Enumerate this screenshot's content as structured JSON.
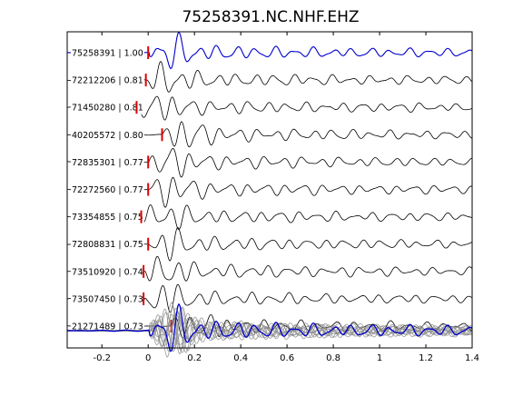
{
  "chart_data": {
    "type": "line",
    "title": "75258391.NC.NHF.EHZ",
    "xlabel": "",
    "ylabel": "",
    "xlim": [
      -0.35,
      1.4
    ],
    "x_ticks": [
      {
        "value": -0.2,
        "label": "-0.2"
      },
      {
        "value": 0,
        "label": "0"
      },
      {
        "value": 0.2,
        "label": "0.2"
      },
      {
        "value": 0.4,
        "label": "0.4"
      },
      {
        "value": 0.6,
        "label": "0.6"
      },
      {
        "value": 0.8,
        "label": "0.8"
      },
      {
        "value": 1,
        "label": "1"
      },
      {
        "value": 1.2,
        "label": "1.2"
      },
      {
        "value": 1.4,
        "label": "1.4"
      }
    ],
    "grid": false,
    "colors": {
      "reference": "#0000cc",
      "trace": "#000000",
      "pick": "#dd0000",
      "stack": "#888888"
    },
    "traces": [
      {
        "label": "75258391 | 1.00",
        "pick_time": 0.0,
        "reference": true
      },
      {
        "label": "72212206 | 0.81",
        "pick_time": -0.01
      },
      {
        "label": "71450280 | 0.81",
        "pick_time": -0.05
      },
      {
        "label": "40205572 | 0.80",
        "pick_time": 0.06
      },
      {
        "label": "72835301 | 0.77",
        "pick_time": 0.0
      },
      {
        "label": "72272560 | 0.77",
        "pick_time": 0.0
      },
      {
        "label": "73354855 | 0.75",
        "pick_time": -0.03
      },
      {
        "label": "72808831 | 0.75",
        "pick_time": 0.0
      },
      {
        "label": "73510920 | 0.74",
        "pick_time": -0.02
      },
      {
        "label": "73507450 | 0.73",
        "pick_time": -0.02
      },
      {
        "label": "21271489 | 0.73",
        "pick_time": 0.1
      }
    ]
  }
}
